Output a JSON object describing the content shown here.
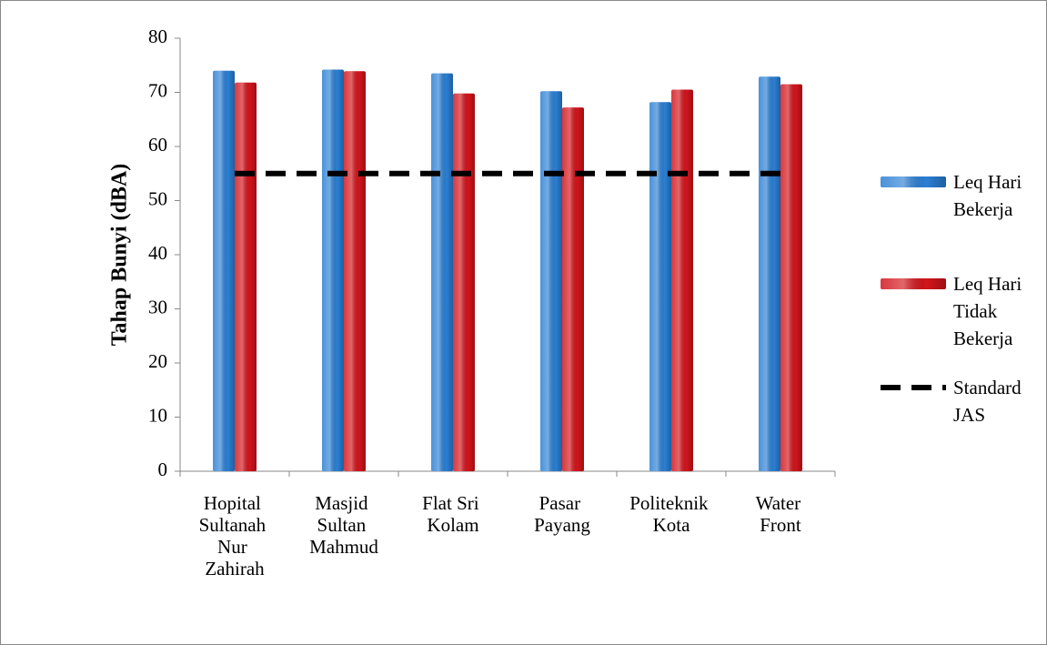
{
  "chart_data": {
    "type": "bar",
    "y_label": "Tahap Bunyi (dBA)",
    "categories": [
      "Hopital Sultanah Nur Zahirah",
      "Masjid Sultan Mahmud",
      "Flat Sri Kolam",
      "Pasar Payang",
      "Politeknik Kota",
      "Water Front"
    ],
    "series": [
      {
        "name": "Leq Hari Bekerja",
        "type": "bar",
        "color": "#2a7fd4",
        "values": [
          74.0,
          74.2,
          73.5,
          70.2,
          68.2,
          72.9
        ]
      },
      {
        "name": "Leq Hari Tidak Bekerja",
        "type": "bar",
        "color": "#d2141b",
        "values": [
          71.8,
          73.9,
          69.8,
          67.2,
          70.5,
          71.5
        ]
      },
      {
        "name": "Standard JAS",
        "type": "line",
        "color": "#000000",
        "dashed": true,
        "values": [
          55,
          55,
          55,
          55,
          55,
          55
        ]
      }
    ],
    "ylim": [
      0,
      80
    ],
    "yticks": [
      0,
      10,
      20,
      30,
      40,
      50,
      60,
      70,
      80
    ],
    "legend": "right"
  }
}
